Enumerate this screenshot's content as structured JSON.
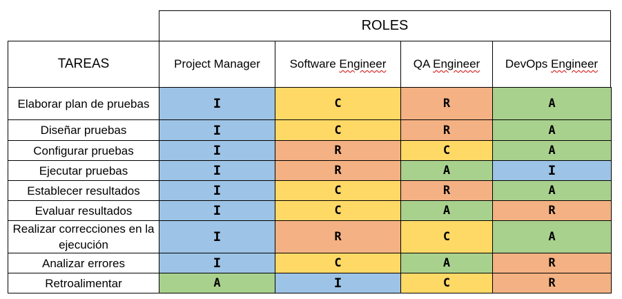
{
  "header": {
    "roles_title": "ROLES",
    "tasks_title": "TAREAS",
    "roles": [
      {
        "pre": "Project Manager",
        "word": ""
      },
      {
        "pre": "Software ",
        "word": "Engineer"
      },
      {
        "pre": "QA ",
        "word": "Engineer"
      },
      {
        "pre": "DevOps ",
        "word": "Engineer"
      }
    ]
  },
  "rows": [
    {
      "task": "Elaborar plan de pruebas",
      "values": [
        "I",
        "C",
        "R",
        "A"
      ]
    },
    {
      "task": "Diseñar pruebas",
      "values": [
        "I",
        "C",
        "R",
        "A"
      ]
    },
    {
      "task": "Configurar pruebas",
      "values": [
        "I",
        "R",
        "C",
        "A"
      ]
    },
    {
      "task": "Ejecutar pruebas",
      "values": [
        "I",
        "R",
        "A",
        "I"
      ]
    },
    {
      "task": "Establecer resultados",
      "values": [
        "I",
        "C",
        "R",
        "A"
      ]
    },
    {
      "task": "Evaluar resultados",
      "values": [
        "I",
        "C",
        "A",
        "R"
      ]
    },
    {
      "task": "Realizar correcciones en la ejecución",
      "values": [
        "I",
        "R",
        "C",
        "A"
      ]
    },
    {
      "task": "Analizar errores",
      "values": [
        "I",
        "C",
        "A",
        "R"
      ]
    },
    {
      "task": "Retroalimentar",
      "values": [
        "A",
        "I",
        "C",
        "R"
      ]
    }
  ],
  "colors": {
    "I": "#9dc3e6",
    "C": "#ffd966",
    "R": "#f4b183",
    "A": "#a9d18e"
  }
}
